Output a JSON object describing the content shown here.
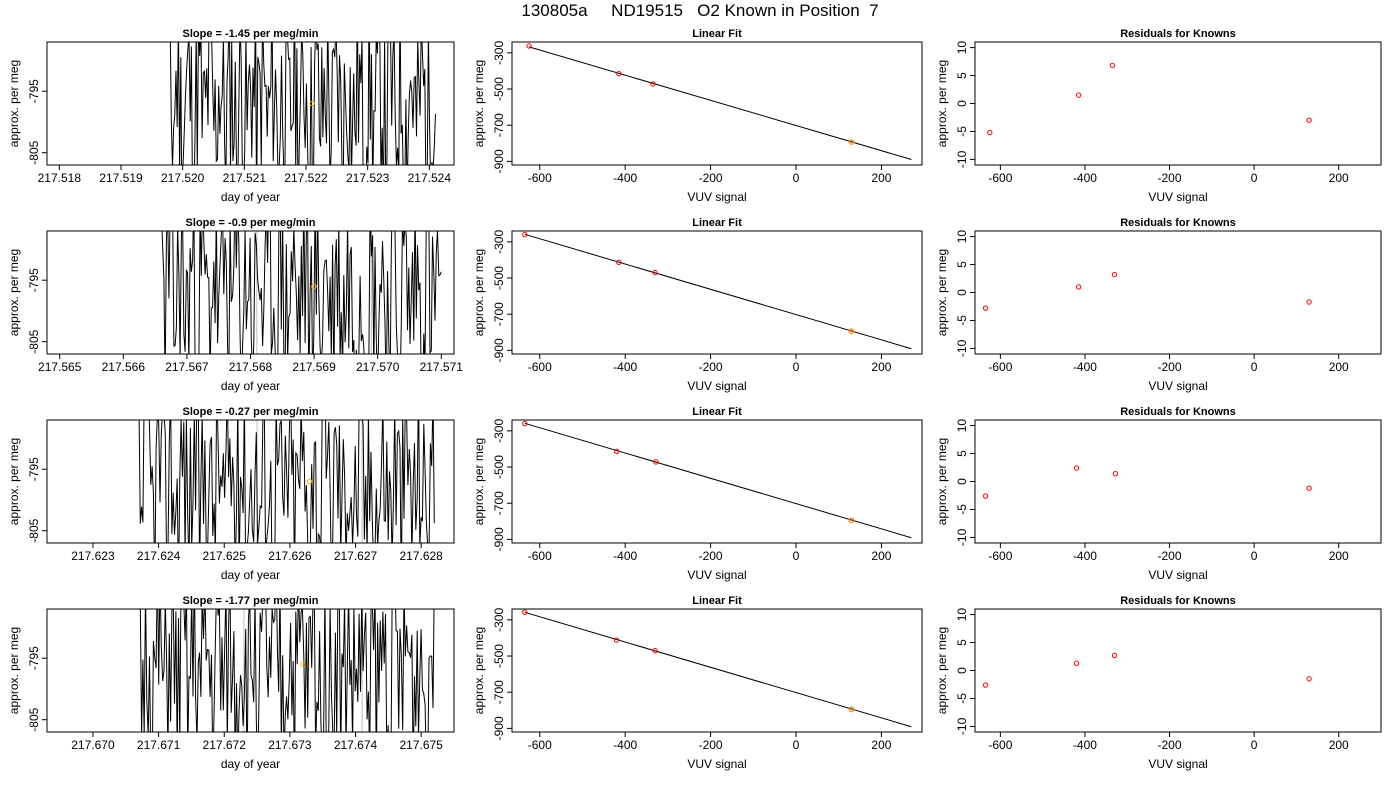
{
  "page_title": "130805a     ND19515   O2 Known in Position  7",
  "colors": {
    "trace": "#000000",
    "marker_orange": "#ffa500",
    "marker_red": "#ff0000",
    "vline": "#bebebe",
    "fit_line": "#000000"
  },
  "chart_data": [
    {
      "type": "line",
      "row": 1,
      "title": "Slope =  -1.45  per meg/min",
      "xlabel": "day of year",
      "ylabel": "approx. per meg",
      "xlim": [
        217.5178,
        217.5244
      ],
      "ylim": [
        -807,
        -787
      ],
      "xticks": [
        "217.518",
        "217.519",
        "217.520",
        "217.521",
        "217.522",
        "217.523",
        "217.524"
      ],
      "yticks": [
        "-795",
        "-805"
      ],
      "trace_x": [
        217.5197,
        217.5241
      ],
      "trace_seed": 11,
      "vlines": [
        217.5212
      ],
      "marker": {
        "x": 217.5221,
        "y": -797
      }
    },
    {
      "type": "scatter",
      "row": 1,
      "title": "Linear Fit",
      "xlabel": "VUV signal",
      "ylabel": "approx. per meg",
      "xlim": [
        -665,
        295
      ],
      "ylim": [
        -920,
        -240
      ],
      "xticks": [
        "-600",
        "-400",
        "-200",
        "0",
        "200"
      ],
      "yticks": [
        "-300",
        "-500",
        "-700",
        "-900"
      ],
      "points": [
        {
          "x": -625,
          "y": -262
        },
        {
          "x": -415,
          "y": -415
        },
        {
          "x": -335,
          "y": -472
        },
        {
          "x": 130,
          "y": -793,
          "known": true
        }
      ],
      "fit": {
        "slope": -0.6956,
        "intercept": -701.6,
        "x": [
          -625,
          270
        ]
      }
    },
    {
      "type": "scatter",
      "row": 1,
      "title": "Residuals for Knowns",
      "xlabel": "VUV signal",
      "ylabel": "approx. per meg",
      "xlim": [
        -660,
        300
      ],
      "ylim": [
        -11,
        11
      ],
      "xticks": [
        "-600",
        "-400",
        "-200",
        "0",
        "200"
      ],
      "yticks": [
        "10",
        "5",
        "0",
        "-5",
        "-10"
      ],
      "points": [
        {
          "x": -625,
          "y": -5.2
        },
        {
          "x": -415,
          "y": 1.5
        },
        {
          "x": -335,
          "y": 6.8
        },
        {
          "x": 130,
          "y": -3.0
        }
      ]
    },
    {
      "type": "line",
      "row": 2,
      "title": "Slope =  -0.9  per meg/min",
      "xlabel": "day of year",
      "ylabel": "approx. per meg",
      "xlim": [
        217.5648,
        217.5712
      ],
      "ylim": [
        -807,
        -787
      ],
      "xticks": [
        "217.565",
        "217.566",
        "217.567",
        "217.568",
        "217.569",
        "217.570",
        "217.571"
      ],
      "yticks": [
        "-795",
        "-805"
      ],
      "trace_x": [
        217.5665,
        217.571
      ],
      "trace_seed": 23,
      "vlines": [
        217.5681,
        217.5699
      ],
      "marker": {
        "x": 217.569,
        "y": -796
      }
    },
    {
      "type": "scatter",
      "row": 2,
      "title": "Linear Fit",
      "xlabel": "VUV signal",
      "ylabel": "approx. per meg",
      "xlim": [
        -665,
        295
      ],
      "ylim": [
        -920,
        -240
      ],
      "xticks": [
        "-600",
        "-400",
        "-200",
        "0",
        "200"
      ],
      "yticks": [
        "-300",
        "-500",
        "-700",
        "-900"
      ],
      "points": [
        {
          "x": -635,
          "y": -260
        },
        {
          "x": -415,
          "y": -413
        },
        {
          "x": -330,
          "y": -470
        },
        {
          "x": 130,
          "y": -794,
          "known": true
        }
      ],
      "fit": {
        "slope": -0.6987,
        "intercept": -702.1,
        "x": [
          -635,
          270
        ]
      }
    },
    {
      "type": "scatter",
      "row": 2,
      "title": "Residuals for Knowns",
      "xlabel": "VUV signal",
      "ylabel": "approx. per meg",
      "xlim": [
        -660,
        300
      ],
      "ylim": [
        -11,
        11
      ],
      "xticks": [
        "-600",
        "-400",
        "-200",
        "0",
        "200"
      ],
      "yticks": [
        "10",
        "5",
        "0",
        "-5",
        "-10"
      ],
      "points": [
        {
          "x": -635,
          "y": -2.8
        },
        {
          "x": -415,
          "y": 1.0
        },
        {
          "x": -330,
          "y": 3.2
        },
        {
          "x": 130,
          "y": -1.7
        }
      ]
    },
    {
      "type": "line",
      "row": 3,
      "title": "Slope =  -0.27  per meg/min",
      "xlabel": "day of year",
      "ylabel": "approx. per meg",
      "xlim": [
        217.6223,
        217.6285
      ],
      "ylim": [
        -807,
        -787
      ],
      "xticks": [
        "217.623",
        "217.624",
        "217.625",
        "217.626",
        "217.627",
        "217.628"
      ],
      "yticks": [
        "-795",
        "-805"
      ],
      "trace_x": [
        217.6236,
        217.6282
      ],
      "trace_seed": 37,
      "vlines": [
        217.6255,
        217.6271
      ],
      "marker": {
        "x": 217.6263,
        "y": -797
      }
    },
    {
      "type": "scatter",
      "row": 3,
      "title": "Linear Fit",
      "xlabel": "VUV signal",
      "ylabel": "approx. per meg",
      "xlim": [
        -665,
        295
      ],
      "ylim": [
        -920,
        -240
      ],
      "xticks": [
        "-600",
        "-400",
        "-200",
        "0",
        "200"
      ],
      "yticks": [
        "-300",
        "-500",
        "-700",
        "-900"
      ],
      "points": [
        {
          "x": -635,
          "y": -260
        },
        {
          "x": -420,
          "y": -413
        },
        {
          "x": -328,
          "y": -472
        },
        {
          "x": 130,
          "y": -795,
          "known": true
        }
      ],
      "fit": {
        "slope": -0.6987,
        "intercept": -702.1,
        "x": [
          -635,
          270
        ]
      }
    },
    {
      "type": "scatter",
      "row": 3,
      "title": "Residuals for Knowns",
      "xlabel": "VUV signal",
      "ylabel": "approx. per meg",
      "xlim": [
        -660,
        300
      ],
      "ylim": [
        -11,
        11
      ],
      "xticks": [
        "-600",
        "-400",
        "-200",
        "0",
        "200"
      ],
      "yticks": [
        "10",
        "5",
        "0",
        "-5",
        "-10"
      ],
      "points": [
        {
          "x": -635,
          "y": -2.6
        },
        {
          "x": -420,
          "y": 2.4
        },
        {
          "x": -328,
          "y": 1.4
        },
        {
          "x": 130,
          "y": -1.2
        }
      ]
    },
    {
      "type": "line",
      "row": 4,
      "title": "Slope =  -1.77  per meg/min",
      "xlabel": "day of year",
      "ylabel": "approx. per meg",
      "xlim": [
        217.6693,
        217.6755
      ],
      "ylim": [
        -807,
        -787
      ],
      "xticks": [
        "217.670",
        "217.671",
        "217.672",
        "217.673",
        "217.674",
        "217.675"
      ],
      "yticks": [
        "-795",
        "-805"
      ],
      "trace_x": [
        217.6706,
        217.6752
      ],
      "trace_seed": 51,
      "vlines": [
        217.6723,
        217.6741
      ],
      "marker": {
        "x": 217.6732,
        "y": -796
      }
    },
    {
      "type": "scatter",
      "row": 4,
      "title": "Linear Fit",
      "xlabel": "VUV signal",
      "ylabel": "approx. per meg",
      "xlim": [
        -665,
        295
      ],
      "ylim": [
        -920,
        -240
      ],
      "xticks": [
        "-600",
        "-400",
        "-200",
        "0",
        "200"
      ],
      "yticks": [
        "-300",
        "-500",
        "-700",
        "-900"
      ],
      "points": [
        {
          "x": -635,
          "y": -258
        },
        {
          "x": -420,
          "y": -412
        },
        {
          "x": -330,
          "y": -470
        },
        {
          "x": 130,
          "y": -795,
          "known": true
        }
      ],
      "fit": {
        "slope": -0.6987,
        "intercept": -702.1,
        "x": [
          -635,
          270
        ]
      }
    },
    {
      "type": "scatter",
      "row": 4,
      "title": "Residuals for Knowns",
      "xlabel": "VUV signal",
      "ylabel": "approx. per meg",
      "xlim": [
        -660,
        300
      ],
      "ylim": [
        -11,
        11
      ],
      "xticks": [
        "-600",
        "-400",
        "-200",
        "0",
        "200"
      ],
      "yticks": [
        "10",
        "5",
        "0",
        "-5",
        "-10"
      ],
      "points": [
        {
          "x": -635,
          "y": -2.6
        },
        {
          "x": -420,
          "y": 1.3
        },
        {
          "x": -330,
          "y": 2.7
        },
        {
          "x": 130,
          "y": -1.5
        }
      ]
    }
  ]
}
